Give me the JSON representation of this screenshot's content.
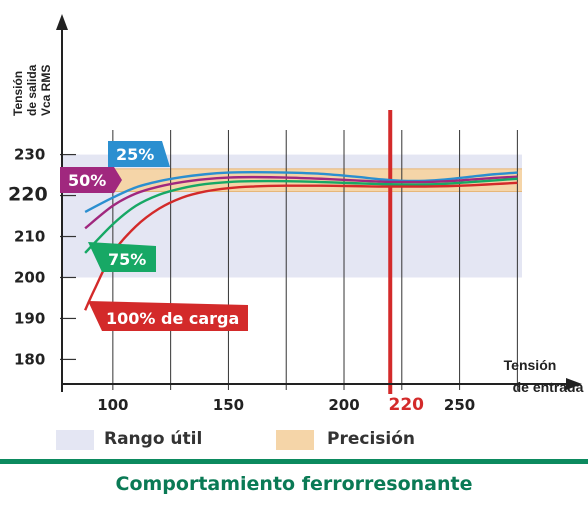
{
  "chart_data": {
    "type": "line",
    "ylabel": [
      "Tensión",
      "de salida",
      "Vca RMS"
    ],
    "xlabel": [
      "Tensión",
      "de entrada"
    ],
    "yticks": [
      180,
      190,
      200,
      210,
      220,
      230
    ],
    "xticks": [
      100,
      150,
      200,
      250
    ],
    "highlight_x": {
      "value": 220,
      "label": "220",
      "color": "#d32a2a"
    },
    "highlight_y_label": "220",
    "xlim": [
      78,
      277
    ],
    "ylim": [
      174,
      236
    ],
    "bands": [
      {
        "name": "Rango útil",
        "from": 200,
        "to": 230,
        "color": "#e4e6f3"
      },
      {
        "name": "Precisión",
        "from": 221,
        "to": 226.5,
        "color": "#f5d5a8"
      }
    ],
    "series": [
      {
        "name": "25%",
        "color": "#2b8fd0",
        "label_color": "#2b8fd0",
        "x": [
          88,
          100,
          110,
          120,
          130,
          140,
          150,
          160,
          175,
          190,
          205,
          215,
          225,
          235,
          245,
          255,
          265,
          275
        ],
        "y": [
          216,
          219.5,
          222,
          223.5,
          224.5,
          225.2,
          225.6,
          225.7,
          225.6,
          225.3,
          224.6,
          224.0,
          223.6,
          223.6,
          224.0,
          224.6,
          225.2,
          225.6
        ]
      },
      {
        "name": "50%",
        "color": "#a0287e",
        "label_color": "#a0287e",
        "x": [
          88,
          100,
          110,
          120,
          130,
          140,
          150,
          160,
          175,
          190,
          205,
          215,
          225,
          235,
          245,
          255,
          265,
          275
        ],
        "y": [
          212,
          217.5,
          220.5,
          222.2,
          223.3,
          224,
          224.4,
          224.5,
          224.4,
          224.1,
          223.7,
          223.4,
          223.3,
          223.3,
          223.5,
          223.9,
          224.3,
          224.6
        ]
      },
      {
        "name": "75%",
        "color": "#17a865",
        "label_color": "#17a865",
        "x": [
          88,
          100,
          110,
          120,
          130,
          140,
          150,
          160,
          175,
          190,
          205,
          215,
          225,
          235,
          245,
          255,
          265,
          275
        ],
        "y": [
          206,
          213,
          217.5,
          220.2,
          221.8,
          222.8,
          223.3,
          223.5,
          223.5,
          223.3,
          223.0,
          222.8,
          222.7,
          222.7,
          222.9,
          223.3,
          223.7,
          224.1
        ]
      },
      {
        "name": "100% de carga",
        "color": "#d32a2a",
        "label_color": "#d32a2a",
        "x": [
          88,
          92,
          100,
          110,
          120,
          130,
          140,
          150,
          160,
          175,
          190,
          205,
          215,
          225,
          235,
          245,
          255,
          265,
          275
        ],
        "y": [
          192,
          197,
          206,
          212.5,
          216.8,
          219.5,
          221,
          221.8,
          222.2,
          222.4,
          222.4,
          222.3,
          222.2,
          222.2,
          222.2,
          222.3,
          222.5,
          222.8,
          223.1
        ]
      }
    ]
  },
  "legend": {
    "items": [
      {
        "label": "Rango útil",
        "color": "#e4e6f3"
      },
      {
        "label": "Precisión",
        "color": "#f5d5a8"
      }
    ]
  },
  "caption": "Comportamiento ferrorresonante"
}
